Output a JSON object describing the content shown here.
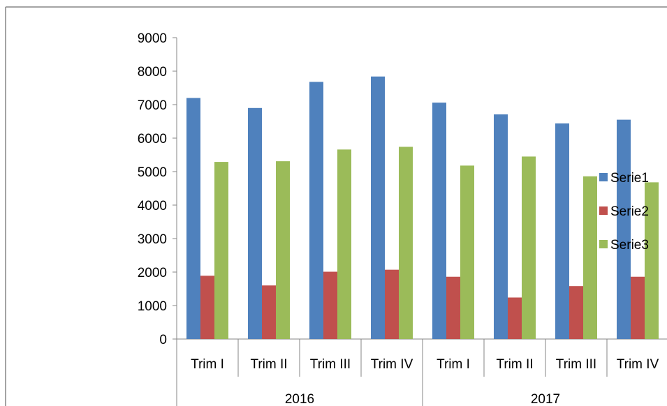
{
  "chart_data": {
    "type": "bar",
    "title": "",
    "xlabel": "",
    "ylabel": "",
    "ylim": [
      0,
      9000
    ],
    "yticks": [
      0,
      1000,
      2000,
      3000,
      4000,
      5000,
      6000,
      7000,
      8000,
      9000
    ],
    "grid": false,
    "legend_position": "right",
    "categories": [
      "Trim I",
      "Trim II",
      "Trim III",
      "Trim IV",
      "Trim I",
      "Trim II",
      "Trim III",
      "Trim IV"
    ],
    "groups": [
      {
        "label": "2016",
        "start": 0,
        "count": 4
      },
      {
        "label": "2017",
        "start": 4,
        "count": 4
      }
    ],
    "series": [
      {
        "name": "Serie1",
        "color": "#4f81bd",
        "values": [
          7200,
          6900,
          7680,
          7840,
          7060,
          6710,
          6440,
          6550
        ]
      },
      {
        "name": "Serie2",
        "color": "#c0504d",
        "values": [
          1890,
          1600,
          2010,
          2070,
          1860,
          1240,
          1580,
          1860
        ]
      },
      {
        "name": "Serie3",
        "color": "#9bbb59",
        "values": [
          5290,
          5310,
          5660,
          5740,
          5180,
          5450,
          4860,
          4680
        ]
      }
    ]
  }
}
